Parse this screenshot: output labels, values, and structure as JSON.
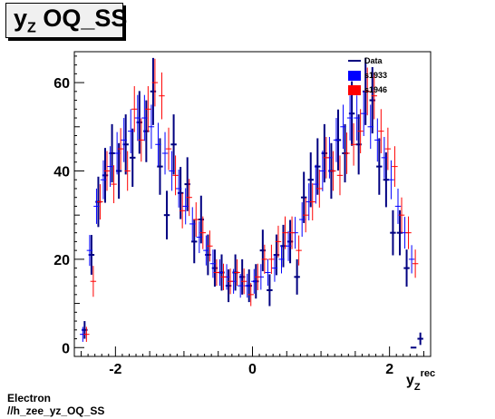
{
  "title": {
    "main": "y",
    "sub": "Z",
    "rest": " OQ_SS"
  },
  "footer": {
    "line1": "Electron",
    "line2": "//h_zee_yz_OQ_SS"
  },
  "chart_data": {
    "type": "scatter",
    "xlabel": {
      "main": "y",
      "sub": "Z",
      "sup": "rec"
    },
    "ylabel": "",
    "xlim": [
      -2.6,
      2.6
    ],
    "ylim": [
      -2,
      67
    ],
    "xticks": [
      -2,
      0,
      2
    ],
    "xtick_labels": [
      "-2",
      "0",
      "2"
    ],
    "yticks": [
      0,
      20,
      40,
      60
    ],
    "ytick_labels": [
      "0",
      "20",
      "40",
      "60"
    ],
    "grid": false,
    "legend": {
      "placement": "top-right"
    },
    "bin_width": 0.1,
    "series": [
      {
        "name": "Data",
        "color": "#000080",
        "style": "errorbar",
        "x": [
          -2.45,
          -2.35,
          -2.25,
          -2.15,
          -2.05,
          -1.95,
          -1.85,
          -1.75,
          -1.65,
          -1.55,
          -1.45,
          -1.35,
          -1.25,
          -1.15,
          -1.05,
          -0.95,
          -0.85,
          -0.75,
          -0.65,
          -0.55,
          -0.45,
          -0.35,
          -0.25,
          -0.15,
          -0.05,
          0.05,
          0.15,
          0.25,
          0.35,
          0.45,
          0.55,
          0.65,
          0.75,
          0.85,
          0.95,
          1.05,
          1.15,
          1.25,
          1.35,
          1.45,
          1.55,
          1.65,
          1.75,
          1.85,
          1.95,
          2.05,
          2.15,
          2.25,
          2.35,
          2.45
        ],
        "y": [
          4,
          21,
          33,
          39,
          44,
          40,
          46,
          43,
          51,
          49,
          58,
          41,
          30,
          46,
          35,
          37,
          24,
          29,
          21,
          18,
          17,
          14,
          17,
          16,
          14,
          15,
          22,
          13,
          21,
          23,
          24,
          16,
          34,
          38,
          41,
          44,
          40,
          47,
          44,
          53,
          46,
          58,
          56,
          41,
          38,
          26,
          26,
          18,
          0,
          2
        ],
        "yerr": [
          2,
          4.5,
          5.7,
          6.2,
          6.6,
          6.3,
          6.8,
          6.6,
          7.1,
          7.0,
          7.6,
          6.4,
          5.5,
          6.8,
          5.9,
          6.1,
          4.9,
          5.4,
          4.6,
          4.2,
          4.1,
          3.7,
          4.1,
          4.0,
          3.7,
          3.9,
          4.7,
          3.6,
          4.6,
          4.8,
          4.9,
          4.0,
          5.8,
          6.2,
          6.4,
          6.6,
          6.3,
          6.9,
          6.6,
          7.3,
          6.8,
          7.6,
          7.5,
          6.4,
          6.2,
          5.1,
          5.1,
          4.2,
          0,
          1.4
        ]
      },
      {
        "name": "s1933",
        "color": "#0000ff",
        "style": "crosshair",
        "x": [
          -2.45,
          -2.35,
          -2.25,
          -2.15,
          -2.05,
          -1.95,
          -1.85,
          -1.75,
          -1.65,
          -1.55,
          -1.45,
          -1.35,
          -1.25,
          -1.15,
          -1.05,
          -0.95,
          -0.85,
          -0.75,
          -0.65,
          -0.55,
          -0.45,
          -0.35,
          -0.25,
          -0.15,
          -0.05,
          0.05,
          0.15,
          0.25,
          0.35,
          0.45,
          0.55,
          0.65,
          0.75,
          0.85,
          0.95,
          1.05,
          1.15,
          1.25,
          1.35,
          1.45,
          1.55,
          1.65,
          1.75,
          1.85,
          1.95,
          2.05,
          2.15,
          2.25,
          2.35
        ],
        "y": [
          3,
          22,
          32,
          38,
          41,
          44,
          47,
          49,
          52,
          52,
          50,
          46,
          44,
          40,
          36,
          32,
          28,
          25,
          22,
          19,
          17,
          16,
          15,
          14,
          14,
          15,
          16,
          17,
          18,
          20,
          23,
          26,
          29,
          33,
          37,
          40,
          43,
          47,
          50,
          52,
          52,
          53,
          50,
          47,
          43,
          38,
          32,
          26,
          20
        ],
        "yerr": [
          1.7,
          3.5,
          4.0,
          4.4,
          4.6,
          4.8,
          5.0,
          5.0,
          5.2,
          5.2,
          5.0,
          4.9,
          4.8,
          4.5,
          4.3,
          4.1,
          3.8,
          3.6,
          3.4,
          3.2,
          3.0,
          2.9,
          2.8,
          2.7,
          2.7,
          2.8,
          2.9,
          3.0,
          3.1,
          3.2,
          3.4,
          3.6,
          3.9,
          4.2,
          4.4,
          4.6,
          4.7,
          5.0,
          5.0,
          5.1,
          5.1,
          5.1,
          5.0,
          4.9,
          4.7,
          4.4,
          4.0,
          3.6,
          3.2
        ]
      },
      {
        "name": "s1946",
        "color": "#ff0000",
        "style": "crosshair",
        "x": [
          -2.45,
          -2.35,
          -2.25,
          -2.15,
          -2.05,
          -1.95,
          -1.85,
          -1.75,
          -1.65,
          -1.55,
          -1.45,
          -1.35,
          -1.25,
          -1.15,
          -1.05,
          -0.95,
          -0.85,
          -0.75,
          -0.65,
          -0.55,
          -0.45,
          -0.35,
          -0.25,
          -0.15,
          -0.05,
          0.05,
          0.15,
          0.25,
          0.35,
          0.45,
          0.55,
          0.65,
          0.75,
          0.85,
          0.95,
          1.05,
          1.15,
          1.25,
          1.35,
          1.45,
          1.55,
          1.65,
          1.75,
          1.85,
          1.95,
          2.05,
          2.15,
          2.25,
          2.35
        ],
        "y": [
          3,
          15,
          33,
          40,
          37,
          45,
          40,
          54,
          47,
          54,
          60,
          57,
          45,
          39,
          31,
          34,
          29,
          26,
          23,
          17,
          16,
          15,
          17,
          15,
          12,
          16,
          20,
          20,
          24,
          26,
          26,
          22,
          30,
          33,
          36,
          43,
          40,
          39,
          44,
          46,
          49,
          58,
          57,
          49,
          45,
          41,
          30,
          26,
          19
        ],
        "yerr": [
          1.7,
          3.5,
          4.0,
          4.5,
          4.3,
          4.7,
          4.5,
          5.2,
          4.9,
          5.2,
          5.4,
          5.3,
          4.8,
          4.5,
          4.0,
          4.2,
          3.9,
          3.7,
          3.5,
          3.0,
          3.0,
          2.9,
          3.0,
          2.9,
          2.6,
          3.0,
          3.3,
          3.3,
          3.6,
          3.7,
          3.7,
          3.4,
          3.9,
          4.2,
          4.3,
          4.7,
          4.5,
          4.5,
          4.7,
          4.8,
          5.0,
          5.4,
          5.3,
          5.0,
          4.8,
          4.6,
          4.0,
          3.7,
          3.2
        ]
      }
    ]
  }
}
